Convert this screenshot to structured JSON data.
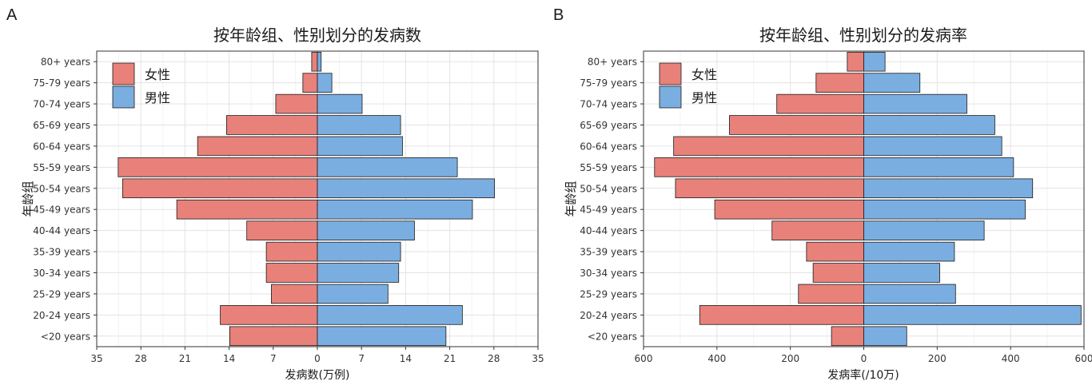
{
  "chart_data": [
    {
      "panel_label": "A",
      "type": "bar",
      "orientation": "horizontal-population-pyramid",
      "title": "按年龄组、性别划分的发病数",
      "xlabel": "发病数(万例)",
      "ylabel": "年龄组",
      "xlim": [
        -35,
        35
      ],
      "xticks": [
        -35,
        -28,
        -21,
        -14,
        -7,
        0,
        7,
        14,
        21,
        28,
        35
      ],
      "xtick_labels": [
        "35",
        "28",
        "21",
        "14",
        "7",
        "0",
        "7",
        "14",
        "21",
        "28",
        "35"
      ],
      "grid": true,
      "legend_position": "top-left",
      "categories": [
        "<20 years",
        "20-24 years",
        "25-29 years",
        "30-34 years",
        "35-39 years",
        "40-44 years",
        "45-49 years",
        "50-54 years",
        "55-59 years",
        "60-64 years",
        "65-69 years",
        "70-74 years",
        "75-79 years",
        "80+ years"
      ],
      "series": [
        {
          "name": "女性",
          "color": "#E8817A",
          "direction": "left",
          "values": [
            13.9,
            15.4,
            7.3,
            8.1,
            8.1,
            11.2,
            22.3,
            30.9,
            31.6,
            19.0,
            14.4,
            6.6,
            2.3,
            0.9
          ]
        },
        {
          "name": "男性",
          "color": "#7BAEE0",
          "direction": "right",
          "values": [
            20.4,
            23.0,
            11.2,
            12.9,
            13.2,
            15.4,
            24.6,
            28.1,
            22.2,
            13.5,
            13.2,
            7.1,
            2.3,
            0.6
          ]
        }
      ]
    },
    {
      "panel_label": "B",
      "type": "bar",
      "orientation": "horizontal-population-pyramid",
      "title": "按年龄组、性别划分的发病率",
      "xlabel": "发病率(/10万)",
      "ylabel": "年龄组",
      "xlim": [
        -600,
        600
      ],
      "xticks": [
        -600,
        -400,
        -200,
        0,
        200,
        400,
        600
      ],
      "xtick_labels": [
        "600",
        "400",
        "200",
        "0",
        "200",
        "400",
        "600"
      ],
      "grid": true,
      "legend_position": "top-left",
      "categories": [
        "<20 years",
        "20-24 years",
        "25-29 years",
        "30-34 years",
        "35-39 years",
        "40-44 years",
        "45-49 years",
        "50-54 years",
        "55-59 years",
        "60-64 years",
        "65-69 years",
        "70-74 years",
        "75-79 years",
        "80+ years"
      ],
      "series": [
        {
          "name": "女性",
          "color": "#E8817A",
          "direction": "left",
          "values": [
            88,
            447,
            178,
            138,
            156,
            250,
            406,
            513,
            570,
            518,
            366,
            237,
            130,
            45
          ]
        },
        {
          "name": "男性",
          "color": "#7BAEE0",
          "direction": "right",
          "values": [
            117,
            592,
            250,
            207,
            247,
            328,
            440,
            460,
            408,
            376,
            357,
            281,
            153,
            58
          ]
        }
      ]
    }
  ]
}
